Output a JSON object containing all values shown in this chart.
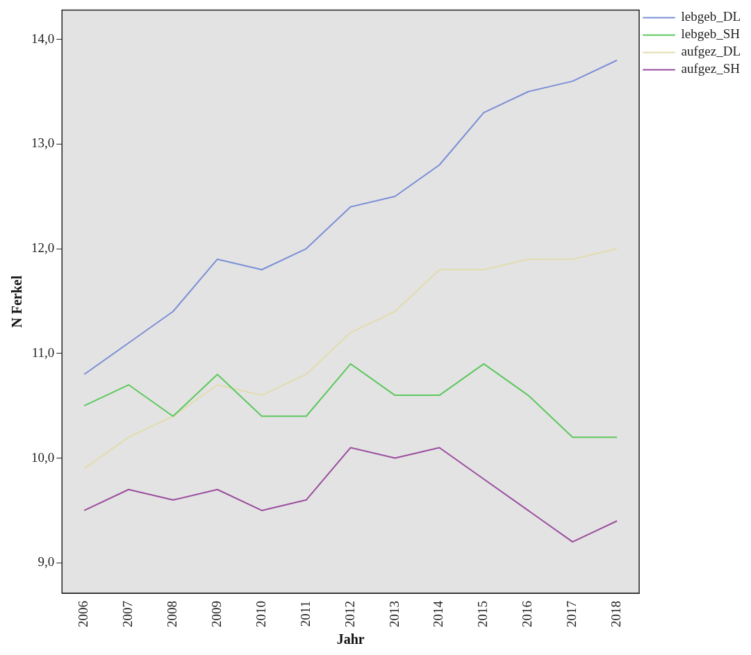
{
  "chart_data": {
    "type": "line",
    "xlabel": "Jahr",
    "ylabel": "N Ferkel",
    "categories": [
      "2006",
      "2007",
      "2008",
      "2009",
      "2010",
      "2011",
      "2012",
      "2013",
      "2014",
      "2015",
      "2016",
      "2017",
      "2018"
    ],
    "series": [
      {
        "name": "lebgeb_DL",
        "color": "#7b8fd6",
        "values": [
          10.8,
          11.1,
          11.4,
          11.9,
          11.8,
          12.0,
          12.4,
          12.5,
          12.8,
          13.3,
          13.5,
          13.6,
          13.8
        ]
      },
      {
        "name": "lebgeb_SH",
        "color": "#5cc85c",
        "values": [
          10.5,
          10.7,
          10.4,
          10.8,
          10.4,
          10.4,
          10.9,
          10.6,
          10.6,
          10.9,
          10.6,
          10.2,
          10.2
        ]
      },
      {
        "name": "aufgez_DL",
        "color": "#e2dcae",
        "values": [
          9.9,
          10.2,
          10.4,
          10.7,
          10.6,
          10.8,
          11.2,
          11.4,
          11.8,
          11.8,
          11.9,
          11.9,
          12.0
        ]
      },
      {
        "name": "aufgez_SH",
        "color": "#9a4d9e",
        "values": [
          9.5,
          9.7,
          9.6,
          9.7,
          9.5,
          9.6,
          10.1,
          10.0,
          10.1,
          9.8,
          9.5,
          9.2,
          9.4
        ]
      }
    ],
    "ylim": [
      8.71,
      14.28
    ],
    "yticks": [
      {
        "value": 9,
        "label": "9,0"
      },
      {
        "value": 10,
        "label": "10,0"
      },
      {
        "value": 11,
        "label": "11,0"
      },
      {
        "value": 12,
        "label": "12,0"
      },
      {
        "value": 13,
        "label": "13,0"
      },
      {
        "value": 14,
        "label": "14,0"
      }
    ],
    "grid": false,
    "legend": "top right",
    "marker": "none",
    "line_style": "solid"
  }
}
